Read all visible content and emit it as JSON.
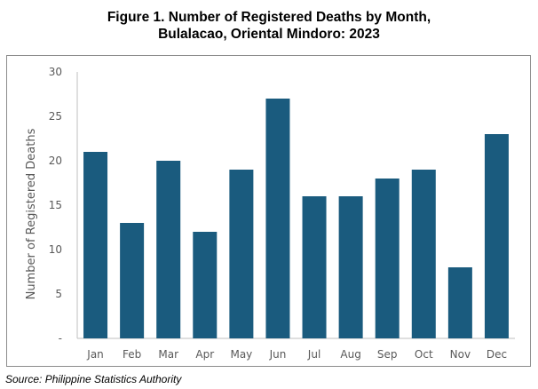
{
  "figure": {
    "title_line1": "Figure 1. Number of Registered Deaths by Month,",
    "title_line2": "Bulalacao, Oriental Mindoro: 2023",
    "source": "Source: Philippine Statistics Authority"
  },
  "chart_data": {
    "type": "bar",
    "title": "Figure 1. Number of Registered Deaths by Month, Bulalacao, Oriental Mindoro: 2023",
    "categories": [
      "Jan",
      "Feb",
      "Mar",
      "Apr",
      "May",
      "Jun",
      "Jul",
      "Aug",
      "Sep",
      "Oct",
      "Nov",
      "Dec"
    ],
    "values": [
      21,
      13,
      20,
      12,
      19,
      27,
      16,
      16,
      18,
      19,
      8,
      23
    ],
    "xlabel": "",
    "ylabel": "Number of Registered Deaths",
    "ylim": [
      0,
      30
    ],
    "yticks": [
      0,
      5,
      10,
      15,
      20,
      25,
      30
    ],
    "ytick_labels": [
      "-",
      "5",
      "10",
      "15",
      "20",
      "25",
      "30"
    ],
    "grid": false,
    "legend": "none",
    "bar_color": "#1a5b7e"
  }
}
